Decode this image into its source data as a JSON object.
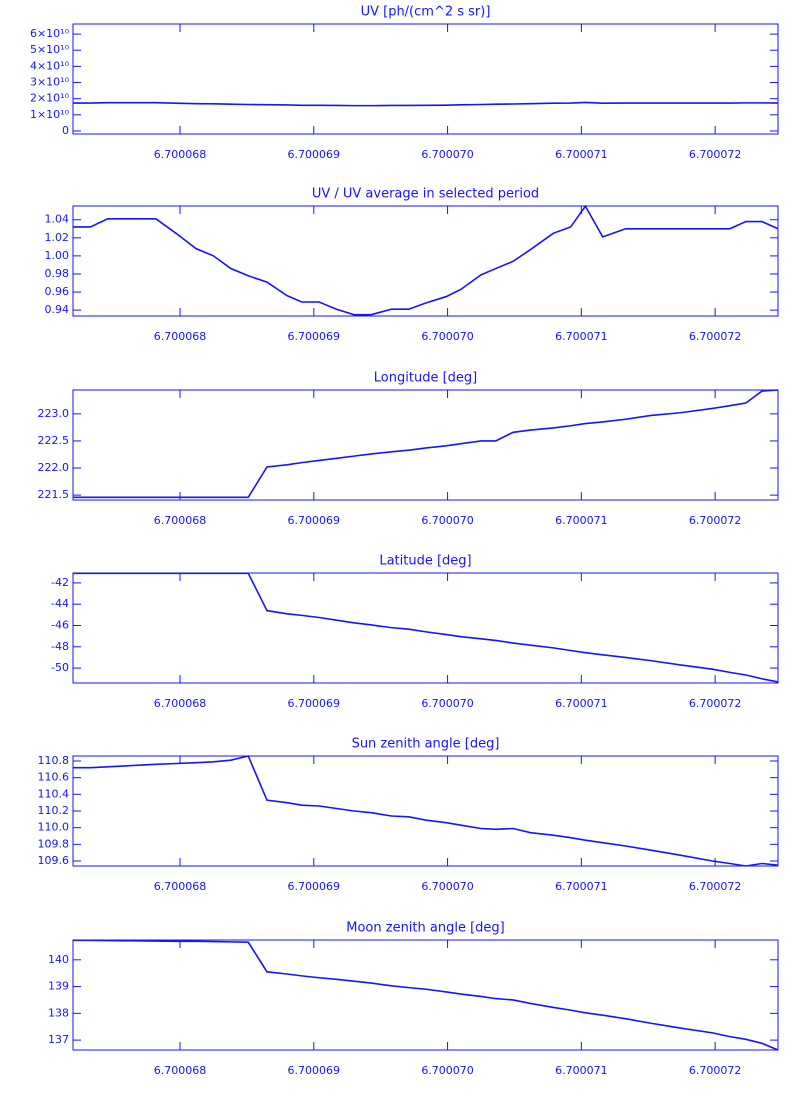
{
  "chart_data": [
    {
      "type": "line",
      "title": "UV [ph/(cm^2 s sr)]",
      "color": "#1414ff",
      "x": [
        6.7000672,
        6.70006733,
        6.70006746,
        6.70006782,
        6.70006797,
        6.70006812,
        6.70006825,
        6.70006838,
        6.70006851,
        6.70006865,
        6.7000688,
        6.70006891,
        6.70006904,
        6.70006917,
        6.7000693,
        6.70006943,
        6.70006958,
        6.70006971,
        6.70006984,
        6.70006999,
        6.7000701,
        6.70007025,
        6.70007036,
        6.70007049,
        6.70007062,
        6.70007079,
        6.70007092,
        6.70007103,
        6.70007116,
        6.70007133,
        6.70007152,
        6.70007174,
        6.70007198,
        6.70007211,
        6.70007223,
        6.70007235,
        6.70007247
      ],
      "values": [
        17300000000,
        17300000000,
        17500000000,
        17500000000,
        17200000000,
        16900000000,
        16800000000,
        16600000000,
        16400000000,
        16300000000,
        16100000000,
        15900000000,
        15900000000,
        15800000000,
        15700000000,
        15700000000,
        15800000000,
        15800000000,
        15900000000,
        16000000000,
        16200000000,
        16400000000,
        16600000000,
        16700000000,
        16900000000,
        17200000000,
        17300000000,
        17700000000,
        17200000000,
        17300000000,
        17300000000,
        17300000000,
        17300000000,
        17300000000,
        17400000000,
        17400000000,
        17300000000
      ],
      "xlim": [
        6.7000672,
        6.70007247
      ],
      "xticks": [
        6.700068,
        6.700069,
        {
          "value": 6.70007,
          "label": "6.700070"
        },
        6.700071,
        6.700072
      ],
      "ylim": [
        -1875000000,
        66250000000
      ],
      "yticks": [
        0,
        {
          "value": 10000000000,
          "label": "1×10¹⁰"
        },
        {
          "value": 20000000000,
          "label": "2×10¹⁰"
        },
        {
          "value": 30000000000,
          "label": "3×10¹⁰"
        },
        {
          "value": 40000000000,
          "label": "4×10¹⁰"
        },
        {
          "value": 50000000000,
          "label": "5×10¹⁰"
        },
        {
          "value": 60000000000,
          "label": "6×10¹⁰"
        }
      ]
    },
    {
      "type": "line",
      "title": "UV / UV average in selected period",
      "color": "#1414ff",
      "x": [
        6.7000672,
        6.70006733,
        6.70006746,
        6.70006782,
        6.70006797,
        6.70006812,
        6.70006825,
        6.70006838,
        6.70006851,
        6.70006865,
        6.7000688,
        6.70006891,
        6.70006904,
        6.70006917,
        6.7000693,
        6.70006943,
        6.70006958,
        6.70006971,
        6.70006984,
        6.70006999,
        6.7000701,
        6.70007025,
        6.70007036,
        6.70007049,
        6.70007062,
        6.70007079,
        6.70007092,
        6.70007103,
        6.70007116,
        6.70007133,
        6.70007152,
        6.70007174,
        6.70007198,
        6.70007211,
        6.70007223,
        6.70007235,
        6.70007247
      ],
      "values": [
        1.032,
        1.032,
        1.041,
        1.041,
        1.025,
        1.008,
        1.0,
        0.986,
        0.978,
        0.971,
        0.956,
        0.949,
        0.949,
        0.941,
        0.935,
        0.935,
        0.941,
        0.941,
        0.948,
        0.955,
        0.963,
        0.979,
        0.986,
        0.994,
        1.007,
        1.025,
        1.032,
        1.055,
        1.021,
        1.03,
        1.03,
        1.03,
        1.03,
        1.03,
        1.038,
        1.038,
        1.03
      ],
      "xlim": [
        6.7000672,
        6.70007247
      ],
      "xticks": [
        6.700068,
        6.700069,
        {
          "value": 6.70007,
          "label": "6.700070"
        },
        6.700071,
        6.700072
      ],
      "ylim": [
        0.9335,
        1.0552
      ],
      "yticks": [
        0.94,
        0.96,
        0.98,
        {
          "value": 1,
          "label": "1.00"
        },
        1.02,
        1.04
      ]
    },
    {
      "type": "line",
      "title": "Longitude [deg]",
      "color": "#1414ff",
      "x": [
        6.7000672,
        6.70006733,
        6.70006746,
        6.70006782,
        6.70006797,
        6.70006812,
        6.70006825,
        6.70006838,
        6.70006851,
        6.70006865,
        6.7000688,
        6.70006891,
        6.70006904,
        6.70006917,
        6.7000693,
        6.70006943,
        6.70006958,
        6.70006971,
        6.70006984,
        6.70006999,
        6.7000701,
        6.70007025,
        6.70007036,
        6.70007049,
        6.70007062,
        6.70007079,
        6.70007092,
        6.70007103,
        6.70007116,
        6.70007133,
        6.70007152,
        6.70007174,
        6.70007198,
        6.70007211,
        6.70007223,
        6.70007235,
        6.70007247
      ],
      "values": [
        221.46,
        221.46,
        221.46,
        221.46,
        221.46,
        221.46,
        221.46,
        221.46,
        221.46,
        222.02,
        222.06,
        222.1,
        222.14,
        222.18,
        222.22,
        222.26,
        222.3,
        222.33,
        222.37,
        222.41,
        222.45,
        222.5,
        222.5,
        222.66,
        222.7,
        222.74,
        222.78,
        222.82,
        222.85,
        222.9,
        222.97,
        223.02,
        223.1,
        223.15,
        223.2,
        223.42,
        223.44
      ],
      "xlim": [
        6.7000672,
        6.70007247
      ],
      "xticks": [
        6.700068,
        6.700069,
        {
          "value": 6.70007,
          "label": "6.700070"
        },
        6.700071,
        6.700072
      ],
      "ylim": [
        221.41,
        223.44
      ],
      "yticks": [
        221.5,
        {
          "value": 222,
          "label": "222.0"
        },
        222.5,
        {
          "value": 223,
          "label": "223.0"
        }
      ]
    },
    {
      "type": "line",
      "title": "Latitude [deg]",
      "color": "#1414ff",
      "x": [
        6.7000672,
        6.70006733,
        6.70006746,
        6.70006782,
        6.70006797,
        6.70006812,
        6.70006825,
        6.70006838,
        6.70006851,
        6.70006865,
        6.7000688,
        6.70006891,
        6.70006904,
        6.70006917,
        6.7000693,
        6.70006943,
        6.70006958,
        6.70006971,
        6.70006984,
        6.70006999,
        6.7000701,
        6.70007025,
        6.70007036,
        6.70007049,
        6.70007062,
        6.70007079,
        6.70007092,
        6.70007103,
        6.70007116,
        6.70007133,
        6.70007152,
        6.70007174,
        6.70007198,
        6.70007211,
        6.70007223,
        6.70007235,
        6.70007247
      ],
      "values": [
        -41.1,
        -41.1,
        -41.1,
        -41.1,
        -41.1,
        -41.1,
        -41.1,
        -41.1,
        -41.1,
        -44.6,
        -44.9,
        -45.05,
        -45.25,
        -45.5,
        -45.75,
        -45.95,
        -46.2,
        -46.35,
        -46.6,
        -46.85,
        -47.05,
        -47.25,
        -47.4,
        -47.65,
        -47.85,
        -48.1,
        -48.35,
        -48.55,
        -48.75,
        -49.0,
        -49.3,
        -49.7,
        -50.1,
        -50.4,
        -50.65,
        -51.0,
        -51.3
      ],
      "xlim": [
        6.7000672,
        6.70007247
      ],
      "xticks": [
        6.700068,
        6.700069,
        {
          "value": 6.70007,
          "label": "6.700070"
        },
        6.700071,
        6.700072
      ],
      "ylim": [
        -51.4,
        -41.07
      ],
      "yticks": [
        -50,
        -48,
        -46,
        -44,
        -42
      ]
    },
    {
      "type": "line",
      "title": "Sun zenith angle [deg]",
      "color": "#1414ff",
      "x": [
        6.7000672,
        6.70006733,
        6.70006746,
        6.70006782,
        6.70006797,
        6.70006812,
        6.70006825,
        6.70006838,
        6.70006851,
        6.70006865,
        6.7000688,
        6.70006891,
        6.70006904,
        6.70006917,
        6.7000693,
        6.70006943,
        6.70006958,
        6.70006971,
        6.70006984,
        6.70006999,
        6.7000701,
        6.70007025,
        6.70007036,
        6.70007049,
        6.70007062,
        6.70007079,
        6.70007092,
        6.70007103,
        6.70007116,
        6.70007133,
        6.70007152,
        6.70007174,
        6.70007198,
        6.70007211,
        6.70007223,
        6.70007235,
        6.70007247
      ],
      "values": [
        110.72,
        110.72,
        110.73,
        110.76,
        110.77,
        110.78,
        110.79,
        110.81,
        110.86,
        110.33,
        110.3,
        110.27,
        110.26,
        110.23,
        110.2,
        110.18,
        110.14,
        110.13,
        110.09,
        110.06,
        110.03,
        109.99,
        109.98,
        109.99,
        109.94,
        109.91,
        109.88,
        109.85,
        109.82,
        109.78,
        109.73,
        109.67,
        109.6,
        109.57,
        109.54,
        109.57,
        109.55
      ],
      "xlim": [
        6.7000672,
        6.70007247
      ],
      "xticks": [
        6.700068,
        6.700069,
        {
          "value": 6.70007,
          "label": "6.700070"
        },
        6.700071,
        6.700072
      ],
      "ylim": [
        109.54,
        110.86
      ],
      "yticks": [
        109.6,
        109.8,
        {
          "value": 110,
          "label": "110.0"
        },
        110.2,
        110.4,
        110.6,
        110.8
      ]
    },
    {
      "type": "line",
      "title": "Moon zenith angle [deg]",
      "color": "#1414ff",
      "x": [
        6.7000672,
        6.70006733,
        6.70006746,
        6.70006782,
        6.70006797,
        6.70006812,
        6.70006825,
        6.70006838,
        6.70006851,
        6.70006865,
        6.7000688,
        6.70006891,
        6.70006904,
        6.70006917,
        6.7000693,
        6.70006943,
        6.70006958,
        6.70006971,
        6.70006984,
        6.70006999,
        6.7000701,
        6.70007025,
        6.70007036,
        6.70007049,
        6.70007062,
        6.70007079,
        6.70007092,
        6.70007103,
        6.70007116,
        6.70007133,
        6.70007152,
        6.70007174,
        6.70007198,
        6.70007211,
        6.70007223,
        6.70007235,
        6.70007247
      ],
      "values": [
        140.73,
        140.73,
        140.72,
        140.7,
        140.69,
        140.69,
        140.68,
        140.67,
        140.66,
        139.55,
        139.47,
        139.4,
        139.33,
        139.27,
        139.2,
        139.13,
        139.03,
        138.96,
        138.9,
        138.8,
        138.72,
        138.63,
        138.55,
        138.5,
        138.37,
        138.22,
        138.12,
        138.02,
        137.93,
        137.8,
        137.63,
        137.45,
        137.27,
        137.13,
        137.03,
        136.88,
        136.63
      ],
      "xlim": [
        6.7000672,
        6.70007247
      ],
      "xticks": [
        6.700068,
        6.700069,
        {
          "value": 6.70007,
          "label": "6.700070"
        },
        6.700071,
        6.700072
      ],
      "ylim": [
        136.63,
        140.74
      ],
      "yticks": [
        137,
        138,
        139,
        140
      ]
    }
  ]
}
